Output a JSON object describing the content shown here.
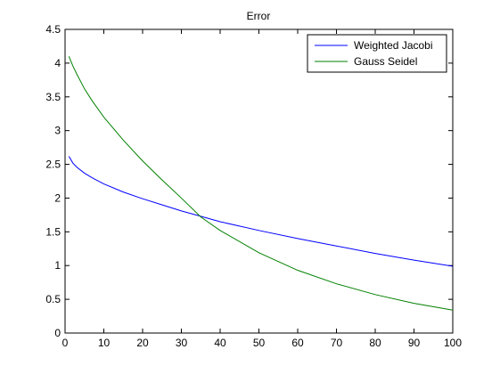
{
  "chart_data": {
    "type": "line",
    "title": "Error",
    "xlabel": "",
    "ylabel": "",
    "xlim": [
      0,
      100
    ],
    "ylim": [
      0,
      4.5
    ],
    "x_ticks": [
      0,
      10,
      20,
      30,
      40,
      50,
      60,
      70,
      80,
      90,
      100
    ],
    "y_ticks": [
      0,
      0.5,
      1,
      1.5,
      2,
      2.5,
      3,
      3.5,
      4,
      4.5
    ],
    "x_tick_labels": [
      "0",
      "10",
      "20",
      "30",
      "40",
      "50",
      "60",
      "70",
      "80",
      "90",
      "100"
    ],
    "y_tick_labels": [
      "0",
      "0.5",
      "1",
      "1.5",
      "2",
      "2.5",
      "3",
      "3.5",
      "4",
      "4.5"
    ],
    "grid": false,
    "legend_position": "top-right",
    "series": [
      {
        "name": "Weighted Jacobi",
        "color": "#0000ff",
        "x": [
          1,
          2,
          3,
          5,
          7,
          10,
          15,
          20,
          25,
          30,
          35,
          40,
          50,
          60,
          70,
          80,
          90,
          100
        ],
        "y": [
          2.62,
          2.52,
          2.46,
          2.37,
          2.3,
          2.21,
          2.09,
          1.99,
          1.9,
          1.81,
          1.73,
          1.65,
          1.52,
          1.4,
          1.29,
          1.18,
          1.08,
          0.99
        ]
      },
      {
        "name": "Gauss Seidel",
        "color": "#008000",
        "x": [
          1,
          2,
          3,
          5,
          7,
          10,
          15,
          20,
          25,
          30,
          35,
          40,
          50,
          60,
          70,
          80,
          90,
          100
        ],
        "y": [
          4.1,
          3.96,
          3.84,
          3.62,
          3.44,
          3.2,
          2.86,
          2.55,
          2.27,
          2.0,
          1.72,
          1.52,
          1.19,
          0.93,
          0.73,
          0.57,
          0.44,
          0.34
        ]
      }
    ]
  }
}
